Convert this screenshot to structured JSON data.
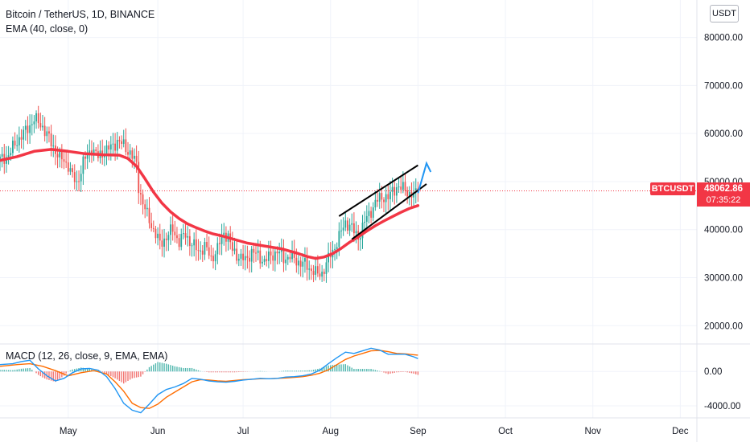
{
  "legend": {
    "title": "Bitcoin / TetherUS, 1D, BINANCE",
    "ema_label": "EMA (40, close, 0)",
    "macd_label": "MACD (12, 26, close, 9, EMA, EMA)"
  },
  "currency_button": "USDT",
  "symbol_tag": "BTCUSDT",
  "last_price": "48062.86",
  "countdown": "07:35:22",
  "colors": {
    "up": "#26a69a",
    "down": "#ef5350",
    "ema": "#f23645",
    "channel": "#000000",
    "projection": "#2196f3",
    "macd_line": "#2196f3",
    "signal_line": "#ff6d00",
    "price_line": "#f23645"
  },
  "chart_data": [
    {
      "type": "candlestick",
      "title": "Bitcoin / TetherUS, 1D, BINANCE",
      "y_axis_ticks": [
        "80000.00",
        "70000.00",
        "60000.00",
        "50000.00",
        "40000.00",
        "30000.00",
        "20000.00"
      ],
      "y_tick_values": [
        80000,
        70000,
        60000,
        50000,
        40000,
        30000,
        20000
      ],
      "ylim": [
        16200,
        87800
      ],
      "x_axis_labels": [
        "May",
        "Jun",
        "Jul",
        "Aug",
        "Sep",
        "Oct",
        "Nov",
        "Dec"
      ],
      "grid": true,
      "last_price": 48062.86,
      "close_path": [
        [
          0,
          54500
        ],
        [
          4,
          55500
        ],
        [
          8,
          58500
        ],
        [
          12,
          60500
        ],
        [
          16,
          63000
        ],
        [
          20,
          61500
        ],
        [
          24,
          58000
        ],
        [
          28,
          55000
        ],
        [
          32,
          53500
        ],
        [
          34,
          51000
        ],
        [
          36,
          49500
        ],
        [
          39,
          54000
        ],
        [
          43,
          57000
        ],
        [
          46,
          55000
        ],
        [
          49,
          56500
        ],
        [
          52,
          57000
        ],
        [
          55,
          58500
        ],
        [
          58,
          57500
        ],
        [
          61,
          56000
        ],
        [
          64,
          53500
        ],
        [
          65,
          49000
        ],
        [
          67,
          45500
        ],
        [
          69,
          43000
        ],
        [
          72,
          40000
        ],
        [
          75,
          37000
        ],
        [
          78,
          38500
        ],
        [
          81,
          40000
        ],
        [
          84,
          37500
        ],
        [
          87,
          39000
        ],
        [
          90,
          37000
        ],
        [
          93,
          35500
        ],
        [
          96,
          36500
        ],
        [
          99,
          34000
        ],
        [
          102,
          36000
        ],
        [
          105,
          39500
        ],
        [
          107,
          38500
        ],
        [
          109,
          35500
        ],
        [
          112,
          34500
        ],
        [
          115,
          33500
        ],
        [
          118,
          35500
        ],
        [
          121,
          34500
        ],
        [
          124,
          33500
        ],
        [
          127,
          34500
        ],
        [
          130,
          35500
        ],
        [
          133,
          34000
        ],
        [
          136,
          34500
        ],
        [
          139,
          33500
        ],
        [
          142,
          33000
        ],
        [
          145,
          32000
        ],
        [
          147,
          31500
        ],
        [
          149,
          30500
        ],
        [
          151,
          31000
        ],
        [
          153,
          33000
        ],
        [
          156,
          35500
        ],
        [
          158,
          37500
        ],
        [
          160,
          39500
        ],
        [
          162,
          41500
        ],
        [
          164,
          41000
        ],
        [
          166,
          39500
        ],
        [
          168,
          38500
        ],
        [
          170,
          40500
        ],
        [
          172,
          42500
        ],
        [
          174,
          44000
        ],
        [
          176,
          45500
        ],
        [
          178,
          46500
        ],
        [
          180,
          47000
        ],
        [
          182,
          46500
        ],
        [
          184,
          48000
        ],
        [
          186,
          49000
        ],
        [
          188,
          48500
        ],
        [
          190,
          48500
        ],
        [
          192,
          47500
        ],
        [
          194,
          47000
        ],
        [
          196,
          48062.86
        ]
      ],
      "series": [
        {
          "name": "EMA (40, close, 0)",
          "type": "line",
          "points": [
            [
              0,
              54400
            ],
            [
              8,
              55200
            ],
            [
              16,
              56300
            ],
            [
              24,
              56700
            ],
            [
              32,
              56300
            ],
            [
              40,
              55800
            ],
            [
              48,
              55600
            ],
            [
              56,
              55500
            ],
            [
              60,
              54800
            ],
            [
              64,
              53200
            ],
            [
              68,
              50600
            ],
            [
              72,
              47800
            ],
            [
              76,
              45500
            ],
            [
              80,
              43700
            ],
            [
              84,
              42300
            ],
            [
              88,
              41200
            ],
            [
              92,
              40400
            ],
            [
              96,
              39700
            ],
            [
              100,
              39100
            ],
            [
              104,
              38700
            ],
            [
              108,
              38200
            ],
            [
              112,
              37700
            ],
            [
              116,
              37200
            ],
            [
              120,
              36900
            ],
            [
              124,
              36600
            ],
            [
              128,
              36300
            ],
            [
              132,
              36000
            ],
            [
              136,
              35500
            ],
            [
              140,
              35000
            ],
            [
              144,
              34400
            ],
            [
              148,
              34000
            ],
            [
              152,
              34300
            ],
            [
              156,
              35000
            ],
            [
              160,
              36100
            ],
            [
              164,
              37400
            ],
            [
              168,
              38500
            ],
            [
              172,
              39700
            ],
            [
              176,
              40800
            ],
            [
              180,
              41800
            ],
            [
              184,
              42700
            ],
            [
              188,
              43600
            ],
            [
              192,
              44400
            ],
            [
              196,
              45000
            ]
          ]
        },
        {
          "name": "Channel upper",
          "type": "line",
          "points": [
            [
              159,
              42800
            ],
            [
              196,
              53400
            ]
          ]
        },
        {
          "name": "Channel lower",
          "type": "line",
          "points": [
            [
              165,
              38000
            ],
            [
              200,
              49500
            ]
          ]
        },
        {
          "name": "Projection",
          "type": "line",
          "points": [
            [
              196,
              47600
            ],
            [
              200,
              53800
            ],
            [
              202,
              52000
            ]
          ]
        }
      ]
    },
    {
      "type": "macd",
      "title": "MACD (12, 26, close, 9, EMA, EMA)",
      "y_axis_ticks": [
        "0.00",
        "-4000.00"
      ],
      "y_tick_values": [
        0,
        -4000
      ],
      "ylim": [
        -5400,
        3200
      ],
      "series": [
        {
          "name": "MACD",
          "type": "line",
          "points": [
            [
              0,
              800
            ],
            [
              6,
              900
            ],
            [
              10,
              1150
            ],
            [
              14,
              1300
            ],
            [
              18,
              300
            ],
            [
              22,
              -500
            ],
            [
              26,
              -1100
            ],
            [
              30,
              -800
            ],
            [
              34,
              -150
            ],
            [
              38,
              300
            ],
            [
              42,
              350
            ],
            [
              46,
              150
            ],
            [
              50,
              -600
            ],
            [
              54,
              -2000
            ],
            [
              58,
              -3700
            ],
            [
              62,
              -4500
            ],
            [
              66,
              -4800
            ],
            [
              70,
              -3800
            ],
            [
              74,
              -2700
            ],
            [
              78,
              -2100
            ],
            [
              82,
              -1800
            ],
            [
              86,
              -1400
            ],
            [
              90,
              -800
            ],
            [
              94,
              -900
            ],
            [
              98,
              -1100
            ],
            [
              102,
              -1200
            ],
            [
              106,
              -1250
            ],
            [
              110,
              -1150
            ],
            [
              114,
              -1000
            ],
            [
              118,
              -900
            ],
            [
              122,
              -800
            ],
            [
              126,
              -850
            ],
            [
              130,
              -800
            ],
            [
              134,
              -650
            ],
            [
              138,
              -600
            ],
            [
              142,
              -500
            ],
            [
              146,
              -300
            ],
            [
              150,
              150
            ],
            [
              154,
              900
            ],
            [
              158,
              1600
            ],
            [
              162,
              2250
            ],
            [
              166,
              2100
            ],
            [
              170,
              2400
            ],
            [
              174,
              2700
            ],
            [
              178,
              2500
            ],
            [
              182,
              2000
            ],
            [
              186,
              2000
            ],
            [
              190,
              2000
            ],
            [
              194,
              1700
            ],
            [
              196,
              1500
            ]
          ]
        },
        {
          "name": "Signal",
          "type": "line",
          "points": [
            [
              0,
              600
            ],
            [
              8,
              800
            ],
            [
              14,
              900
            ],
            [
              20,
              600
            ],
            [
              26,
              100
            ],
            [
              32,
              -500
            ],
            [
              38,
              -150
            ],
            [
              44,
              100
            ],
            [
              50,
              -300
            ],
            [
              54,
              -1200
            ],
            [
              58,
              -2300
            ],
            [
              62,
              -3700
            ],
            [
              66,
              -4200
            ],
            [
              70,
              -4300
            ],
            [
              74,
              -3800
            ],
            [
              78,
              -3000
            ],
            [
              82,
              -2400
            ],
            [
              86,
              -1800
            ],
            [
              90,
              -1200
            ],
            [
              94,
              -950
            ],
            [
              98,
              -1000
            ],
            [
              102,
              -1100
            ],
            [
              106,
              -1150
            ],
            [
              110,
              -1050
            ],
            [
              114,
              -950
            ],
            [
              118,
              -900
            ],
            [
              122,
              -850
            ],
            [
              126,
              -850
            ],
            [
              130,
              -800
            ],
            [
              134,
              -750
            ],
            [
              138,
              -680
            ],
            [
              142,
              -600
            ],
            [
              146,
              -450
            ],
            [
              150,
              -200
            ],
            [
              154,
              200
            ],
            [
              158,
              800
            ],
            [
              162,
              1400
            ],
            [
              166,
              1800
            ],
            [
              170,
              2100
            ],
            [
              174,
              2400
            ],
            [
              178,
              2450
            ],
            [
              182,
              2300
            ],
            [
              186,
              2100
            ],
            [
              190,
              2050
            ],
            [
              194,
              1950
            ],
            [
              196,
              1900
            ]
          ]
        }
      ]
    }
  ]
}
